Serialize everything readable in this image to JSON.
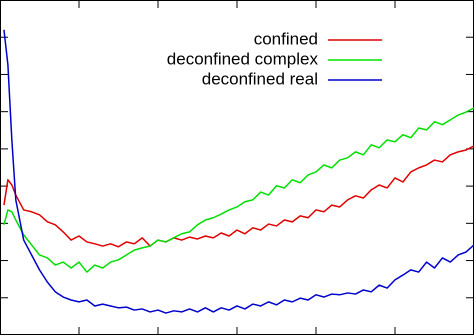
{
  "chart_data": {
    "type": "line",
    "x": [
      0.05,
      0.1,
      0.15,
      0.2,
      0.3,
      0.4,
      0.5,
      0.6,
      0.7,
      0.8,
      0.9,
      1.0,
      1.1,
      1.2,
      1.3,
      1.4,
      1.5,
      1.6,
      1.7,
      1.8,
      1.9,
      2.0,
      2.1,
      2.2,
      2.3,
      2.4,
      2.5,
      2.6,
      2.7,
      2.8,
      2.9,
      3.0,
      3.1,
      3.2,
      3.3,
      3.4,
      3.5,
      3.6,
      3.7,
      3.8,
      3.9,
      4.0,
      4.1,
      4.2,
      4.3,
      4.4,
      4.5,
      4.6,
      4.7,
      4.8,
      4.9,
      5.0,
      5.1,
      5.2,
      5.3,
      5.4,
      5.5,
      5.6,
      5.7,
      5.8,
      5.9,
      6.0
    ],
    "series": [
      {
        "name": "confined",
        "color": "#e00000",
        "values": [
          3.49,
          4.17,
          4.03,
          3.76,
          3.36,
          3.31,
          3.23,
          3.04,
          2.96,
          2.77,
          2.55,
          2.66,
          2.5,
          2.45,
          2.39,
          2.45,
          2.37,
          2.5,
          2.45,
          2.61,
          2.39,
          2.55,
          2.5,
          2.61,
          2.55,
          2.63,
          2.58,
          2.66,
          2.61,
          2.74,
          2.66,
          2.82,
          2.72,
          2.88,
          2.82,
          2.98,
          2.93,
          3.09,
          3.04,
          3.2,
          3.15,
          3.36,
          3.31,
          3.49,
          3.44,
          3.63,
          3.74,
          3.68,
          3.9,
          4.03,
          3.95,
          4.22,
          4.11,
          4.38,
          4.49,
          4.57,
          4.7,
          4.65,
          4.84,
          4.92,
          4.97,
          5.08
        ]
      },
      {
        "name": "deconfined complex",
        "color": "#00e000",
        "values": [
          2.96,
          3.36,
          3.31,
          3.09,
          2.69,
          2.42,
          2.15,
          2.07,
          1.88,
          1.96,
          1.8,
          1.96,
          1.69,
          1.88,
          1.8,
          1.96,
          2.02,
          2.15,
          2.28,
          2.34,
          2.39,
          2.55,
          2.5,
          2.61,
          2.72,
          2.77,
          2.96,
          3.09,
          3.15,
          3.25,
          3.36,
          3.44,
          3.58,
          3.63,
          3.84,
          3.76,
          4.01,
          3.95,
          4.17,
          4.09,
          4.3,
          4.38,
          4.57,
          4.49,
          4.7,
          4.76,
          4.92,
          4.84,
          5.11,
          5.03,
          5.24,
          5.19,
          5.38,
          5.3,
          5.56,
          5.51,
          5.73,
          5.65,
          5.78,
          5.91,
          5.99,
          6.1
        ]
      },
      {
        "name": "deconfined real",
        "color": "#0000cc",
        "values": [
          8.2,
          7.26,
          5.24,
          3.63,
          2.55,
          2.15,
          1.75,
          1.42,
          1.16,
          1.02,
          0.94,
          0.89,
          0.94,
          0.78,
          0.83,
          0.78,
          0.73,
          0.75,
          0.67,
          0.7,
          0.62,
          0.67,
          0.59,
          0.65,
          0.62,
          0.7,
          0.62,
          0.73,
          0.62,
          0.73,
          0.67,
          0.78,
          0.7,
          0.83,
          0.78,
          0.89,
          0.81,
          0.94,
          0.89,
          0.99,
          0.94,
          1.08,
          1.02,
          1.1,
          1.08,
          1.13,
          1.1,
          1.21,
          1.16,
          1.34,
          1.26,
          1.48,
          1.61,
          1.75,
          1.69,
          1.96,
          1.8,
          2.07,
          1.96,
          2.15,
          2.23,
          2.42
        ]
      }
    ],
    "xlim": [
      0,
      6
    ],
    "xticks": [
      1,
      2,
      3,
      4,
      5
    ],
    "ylim": [
      0,
      9
    ],
    "yticks": [
      1,
      2,
      3,
      4,
      5,
      6,
      7,
      8
    ],
    "legend": "upper right"
  }
}
